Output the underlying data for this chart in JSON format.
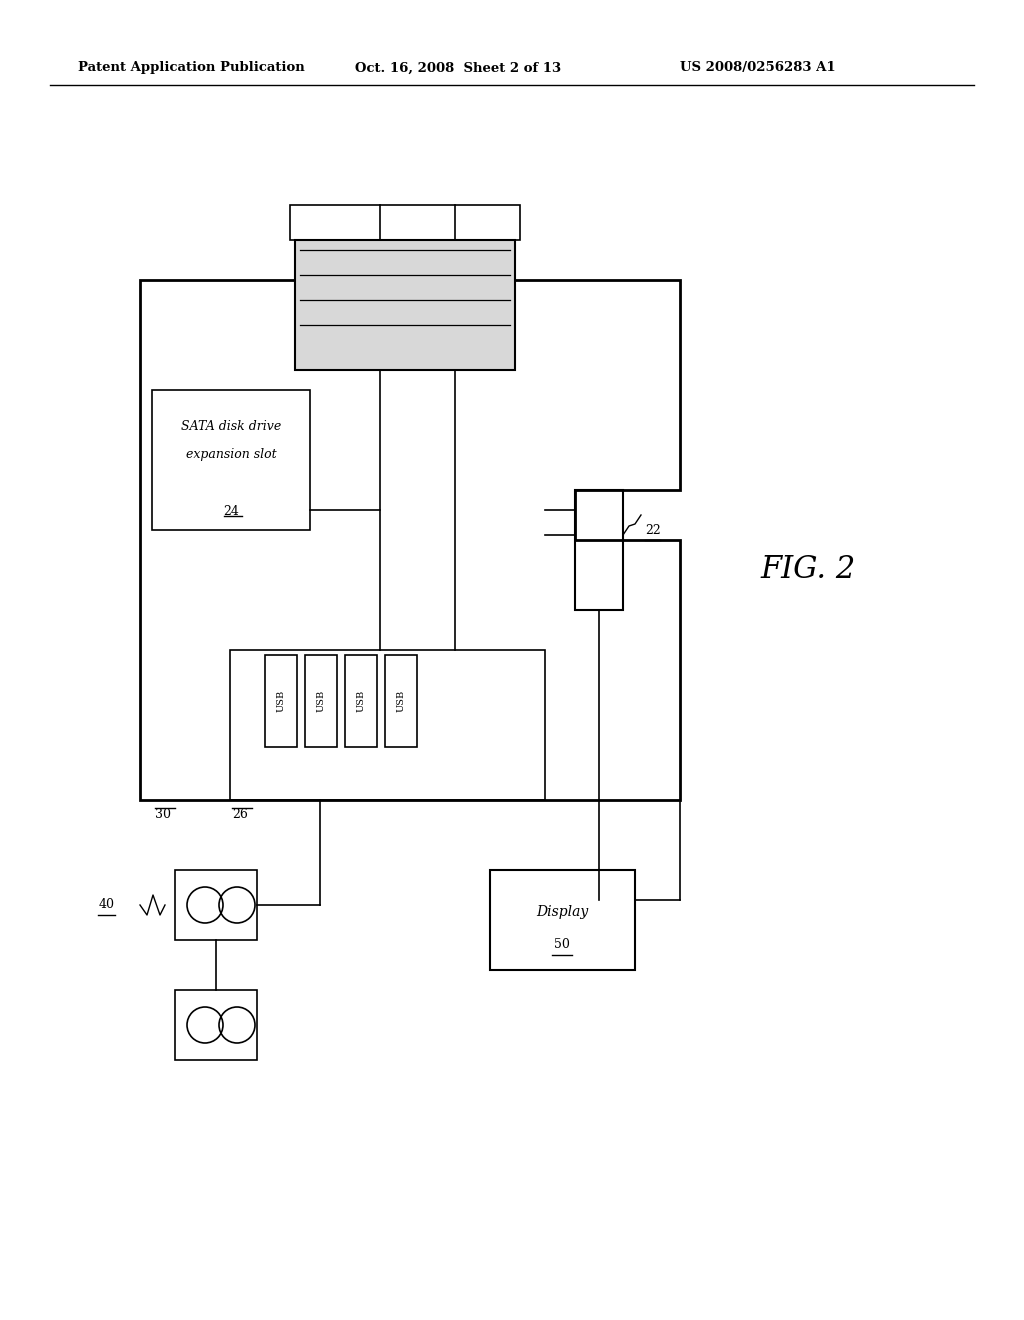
{
  "bg_color": "#ffffff",
  "header_text": "Patent Application Publication",
  "header_date": "Oct. 16, 2008  Sheet 2 of 13",
  "header_patent": "US 2008/0256283 A1",
  "fig_label": "FIG. 2"
}
